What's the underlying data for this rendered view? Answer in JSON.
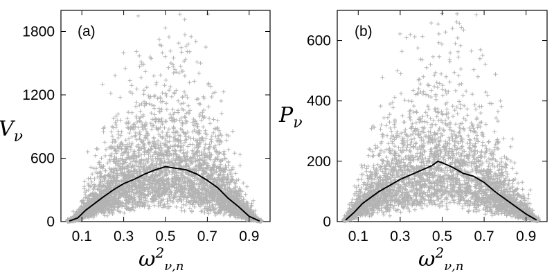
{
  "chart_data": [
    {
      "type": "scatter",
      "panel_label": "(a)",
      "ylabel": {
        "main": "V",
        "sub": "ν"
      },
      "xlabel": {
        "main": "ω",
        "sup": "2",
        "sub": "ν,n"
      },
      "xlim": [
        0.0,
        1.0
      ],
      "ylim": [
        0,
        2000
      ],
      "xticks": [
        0.1,
        0.3,
        0.5,
        0.7,
        0.9
      ],
      "xtick_labels": [
        "0.1",
        "0.3",
        "0.5",
        "0.7",
        "0.9"
      ],
      "yticks": [
        0,
        600,
        1200,
        1800
      ],
      "ytick_labels": [
        "0",
        "600",
        "1200",
        "1800"
      ],
      "scatter_color": "#b3b3b3",
      "scatter_marker": "+",
      "scatter_x_range": [
        0.03,
        0.96
      ],
      "scatter_peak": 2050,
      "line_color": "#000000",
      "mean_line": {
        "x": [
          0.04,
          0.08,
          0.12,
          0.16,
          0.2,
          0.25,
          0.3,
          0.35,
          0.4,
          0.45,
          0.5,
          0.55,
          0.6,
          0.65,
          0.7,
          0.75,
          0.8,
          0.85,
          0.9,
          0.95
        ],
        "y": [
          5,
          35,
          110,
          170,
          230,
          300,
          360,
          400,
          450,
          490,
          520,
          505,
          490,
          450,
          390,
          320,
          220,
          140,
          50,
          5
        ]
      }
    },
    {
      "type": "scatter",
      "panel_label": "(b)",
      "ylabel": {
        "main": "P",
        "sub": "ν"
      },
      "xlabel": {
        "main": "ω",
        "sup": "2",
        "sub": "ν,n"
      },
      "xlim": [
        0.0,
        1.0
      ],
      "ylim": [
        0,
        700
      ],
      "xticks": [
        0.1,
        0.3,
        0.5,
        0.7,
        0.9
      ],
      "xtick_labels": [
        "0.1",
        "0.3",
        "0.5",
        "0.7",
        "0.9"
      ],
      "yticks": [
        0,
        200,
        400,
        600
      ],
      "ytick_labels": [
        "0",
        "200",
        "400",
        "600"
      ],
      "scatter_color": "#b3b3b3",
      "scatter_marker": "+",
      "scatter_x_range": [
        0.03,
        0.96
      ],
      "scatter_peak": 690,
      "line_color": "#000000",
      "mean_line": {
        "x": [
          0.04,
          0.08,
          0.12,
          0.16,
          0.2,
          0.25,
          0.3,
          0.35,
          0.4,
          0.45,
          0.48,
          0.5,
          0.55,
          0.6,
          0.65,
          0.7,
          0.75,
          0.8,
          0.85,
          0.9,
          0.95
        ],
        "y": [
          5,
          30,
          60,
          80,
          100,
          120,
          140,
          155,
          170,
          185,
          200,
          195,
          180,
          160,
          150,
          130,
          100,
          75,
          50,
          25,
          5
        ]
      }
    }
  ]
}
